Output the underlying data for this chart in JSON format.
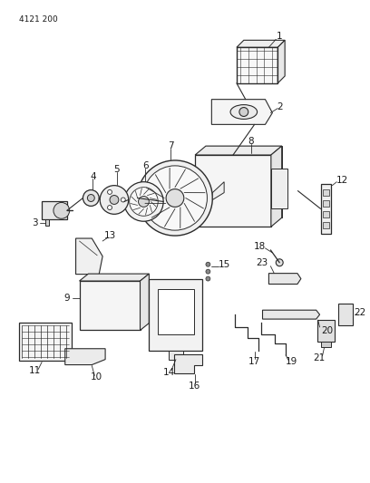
{
  "page_id": "4121 200",
  "bg_color": "#ffffff",
  "line_color": "#2a2a2a",
  "label_color": "#1a1a1a",
  "figsize": [
    4.08,
    5.33
  ],
  "dpi": 100
}
